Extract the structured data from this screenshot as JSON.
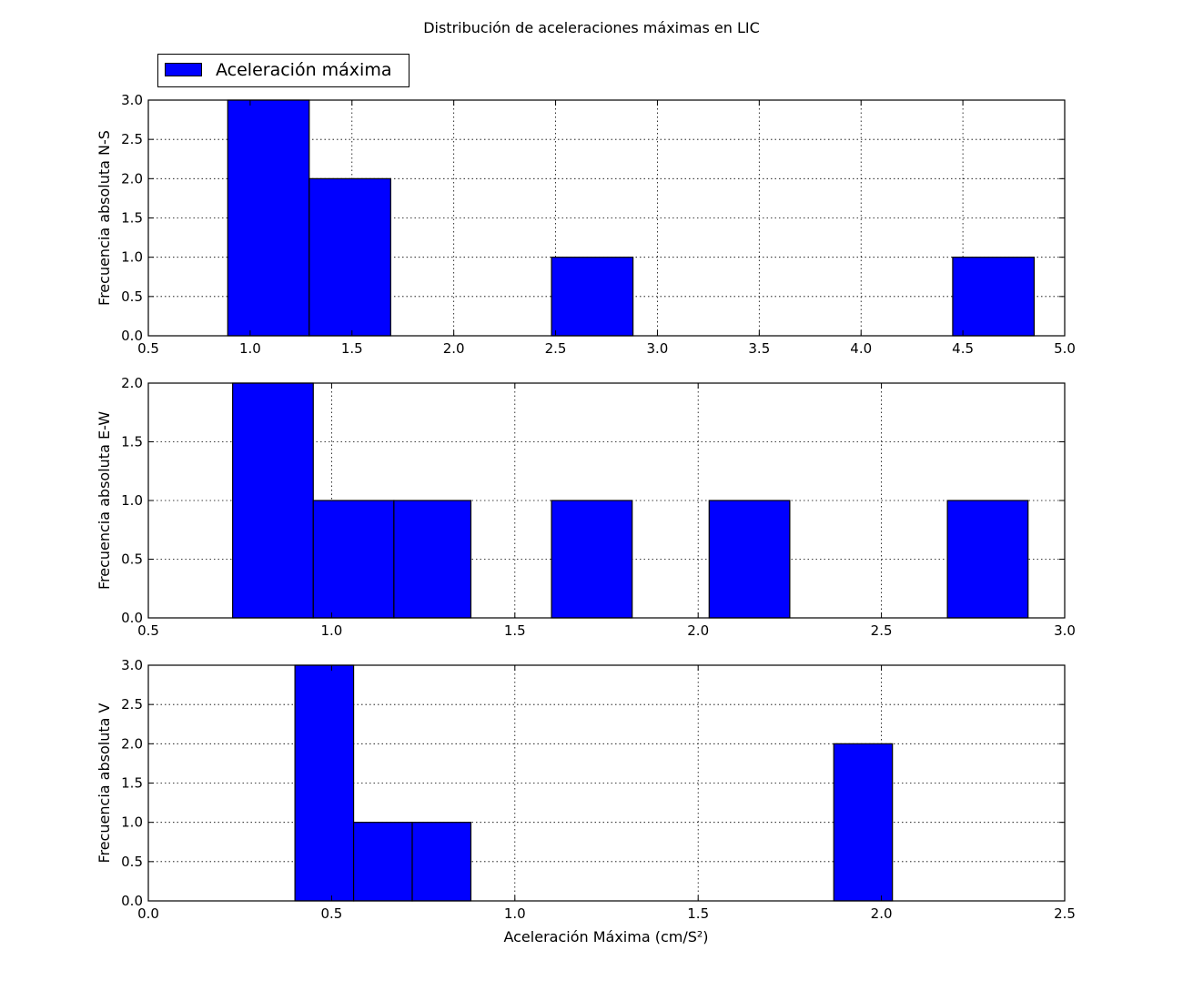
{
  "chart_data": {
    "type": "bar",
    "title": "Distribución de aceleraciones máximas en LIC",
    "xlabel": "Aceleración Máxima (cm/S²)",
    "legend": {
      "label": "Aceleración máxima",
      "placement": "top-left"
    },
    "bar_color": "#0000ff",
    "grid": true,
    "panels": [
      {
        "ylabel": "Frecuencia absoluta N-S",
        "xlim": [
          0.5,
          5.0
        ],
        "ylim": [
          0,
          3.0
        ],
        "xticks": [
          "0.5",
          "1.0",
          "1.5",
          "2.0",
          "2.5",
          "3.0",
          "3.5",
          "4.0",
          "4.5",
          "5.0"
        ],
        "yticks": [
          "0.0",
          "0.5",
          "1.0",
          "1.5",
          "2.0",
          "2.5",
          "3.0"
        ],
        "bins": [
          {
            "x0": 0.89,
            "x1": 1.29,
            "count": 3
          },
          {
            "x0": 1.29,
            "x1": 1.69,
            "count": 2
          },
          {
            "x0": 2.48,
            "x1": 2.88,
            "count": 1
          },
          {
            "x0": 4.45,
            "x1": 4.85,
            "count": 1
          }
        ]
      },
      {
        "ylabel": "Frecuencia absoluta E-W",
        "xlim": [
          0.5,
          3.0
        ],
        "ylim": [
          0,
          2.0
        ],
        "xticks": [
          "0.5",
          "1.0",
          "1.5",
          "2.0",
          "2.5",
          "3.0"
        ],
        "yticks": [
          "0.0",
          "0.5",
          "1.0",
          "1.5",
          "2.0"
        ],
        "bins": [
          {
            "x0": 0.73,
            "x1": 0.95,
            "count": 2
          },
          {
            "x0": 0.95,
            "x1": 1.17,
            "count": 1
          },
          {
            "x0": 1.17,
            "x1": 1.38,
            "count": 1
          },
          {
            "x0": 1.6,
            "x1": 1.82,
            "count": 1
          },
          {
            "x0": 2.03,
            "x1": 2.25,
            "count": 1
          },
          {
            "x0": 2.68,
            "x1": 2.9,
            "count": 1
          }
        ]
      },
      {
        "ylabel": "Frecuencia absoluta V",
        "xlim": [
          0.0,
          2.5
        ],
        "ylim": [
          0,
          3.0
        ],
        "xticks": [
          "0.0",
          "0.5",
          "1.0",
          "1.5",
          "2.0",
          "2.5"
        ],
        "yticks": [
          "0.0",
          "0.5",
          "1.0",
          "1.5",
          "2.0",
          "2.5",
          "3.0"
        ],
        "bins": [
          {
            "x0": 0.4,
            "x1": 0.56,
            "count": 3
          },
          {
            "x0": 0.56,
            "x1": 0.72,
            "count": 1
          },
          {
            "x0": 0.72,
            "x1": 0.88,
            "count": 1
          },
          {
            "x0": 1.87,
            "x1": 2.03,
            "count": 2
          }
        ]
      }
    ]
  }
}
